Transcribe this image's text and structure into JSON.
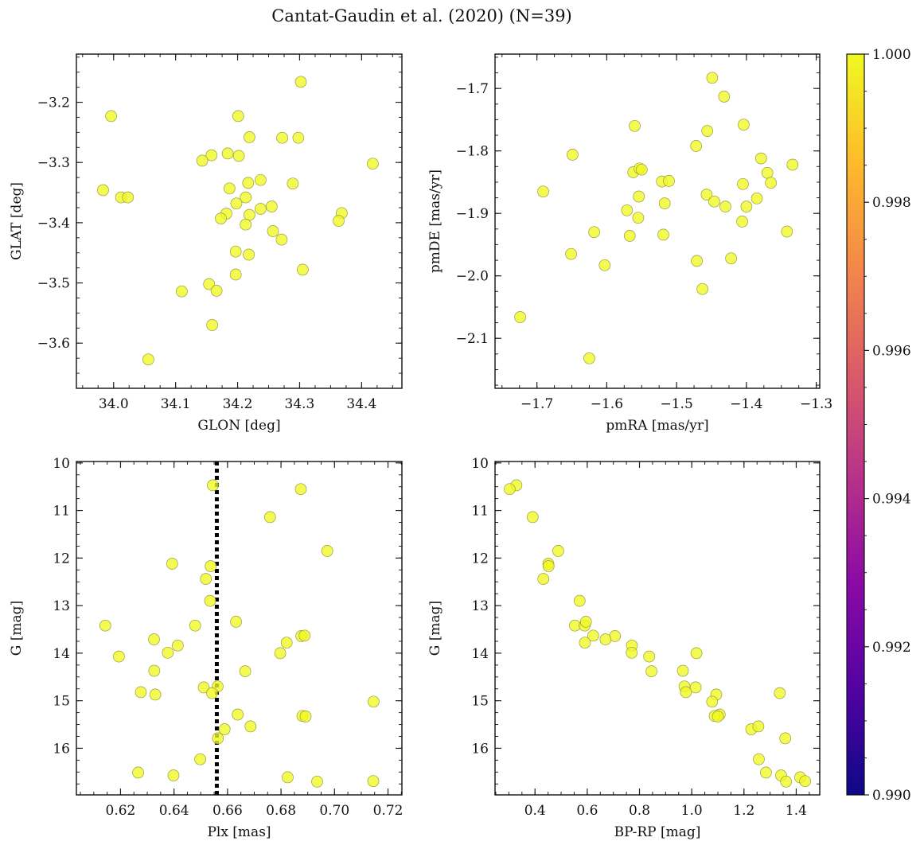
{
  "figure": {
    "title": "Cantat-Gaudin et al. (2020) (N=39)"
  },
  "colors": {
    "point_fill": "#f0f921",
    "point_edge": "#9a9a40",
    "ref_line": "#000000",
    "colormap": [
      "#0d0887",
      "#5302a3",
      "#8b0aa5",
      "#b83289",
      "#db5c68",
      "#f48849",
      "#febc2a",
      "#f0f921"
    ]
  },
  "colorbar": {
    "ticks": [
      "0.990",
      "0.992",
      "0.994",
      "0.996",
      "0.998",
      "1.000"
    ],
    "range": [
      0.99,
      1.0
    ],
    "colormap_name": "plasma"
  },
  "chart_data": [
    {
      "id": "pos",
      "type": "scatter",
      "xlabel": "GLON [deg]",
      "ylabel": "GLAT [deg]",
      "xlim": [
        33.94,
        34.465
      ],
      "ylim": [
        -3.675,
        -3.12
      ],
      "xticks": [
        34.0,
        34.1,
        34.2,
        34.3,
        34.4
      ],
      "xtick_labels": [
        "34.0",
        "34.1",
        "34.2",
        "34.3",
        "34.4"
      ],
      "yticks": [
        -3.2,
        -3.3,
        -3.4,
        -3.5,
        -3.6
      ],
      "ytick_labels": [
        "−3.2",
        "−3.3",
        "−3.4",
        "−3.5",
        "−3.6"
      ],
      "x": [
        34.302,
        33.996,
        34.201,
        34.219,
        34.272,
        34.298,
        34.418,
        34.158,
        34.184,
        34.202,
        34.143,
        34.237,
        34.217,
        34.289,
        33.983,
        34.187,
        34.213,
        34.012,
        34.023,
        34.198,
        34.255,
        34.368,
        34.219,
        34.182,
        34.173,
        34.213,
        34.363,
        34.257,
        34.271,
        34.305,
        34.218,
        34.197,
        34.197,
        34.154,
        34.11,
        34.166,
        34.159,
        34.056,
        34.237
      ],
      "y": [
        -3.166,
        -3.223,
        -3.223,
        -3.258,
        -3.259,
        -3.259,
        -3.302,
        -3.288,
        -3.285,
        -3.289,
        -3.297,
        -3.329,
        -3.334,
        -3.335,
        -3.346,
        -3.343,
        -3.358,
        -3.358,
        -3.358,
        -3.368,
        -3.373,
        -3.384,
        -3.387,
        -3.385,
        -3.393,
        -3.403,
        -3.397,
        -3.414,
        -3.428,
        -3.478,
        -3.453,
        -3.448,
        -3.486,
        -3.502,
        -3.514,
        -3.513,
        -3.57,
        -3.627,
        -3.377
      ]
    },
    {
      "id": "pm",
      "type": "scatter",
      "xlabel": "pmRA [mas/yr]",
      "ylabel": "pmDE [mas/yr]",
      "xlim": [
        -1.76,
        -1.295
      ],
      "ylim": [
        -2.18,
        -1.645
      ],
      "xticks": [
        -1.7,
        -1.6,
        -1.5,
        -1.4,
        -1.3
      ],
      "xtick_labels": [
        "−1.7",
        "−1.6",
        "−1.5",
        "−1.4",
        "−1.3"
      ],
      "yticks": [
        -1.7,
        -1.8,
        -1.9,
        -2.0,
        -2.1
      ],
      "ytick_labels": [
        "−1.7",
        "−1.8",
        "−1.9",
        "−2.0",
        "−2.1"
      ],
      "x": [
        -1.449,
        -1.432,
        -1.56,
        -1.404,
        -1.456,
        -1.649,
        -1.472,
        -1.379,
        -1.334,
        -1.562,
        -1.553,
        -1.37,
        -1.521,
        -1.511,
        -1.365,
        -1.405,
        -1.691,
        -1.457,
        -1.554,
        -1.385,
        -1.446,
        -1.517,
        -1.43,
        -1.4,
        -1.571,
        -1.406,
        -1.555,
        -1.618,
        -1.342,
        -1.567,
        -1.519,
        -1.651,
        -1.422,
        -1.471,
        -1.603,
        -1.463,
        -1.724,
        -1.625,
        -1.55
      ],
      "y": [
        -1.683,
        -1.713,
        -1.76,
        -1.758,
        -1.768,
        -1.806,
        -1.792,
        -1.812,
        -1.822,
        -1.834,
        -1.828,
        -1.835,
        -1.849,
        -1.848,
        -1.851,
        -1.853,
        -1.865,
        -1.87,
        -1.873,
        -1.876,
        -1.881,
        -1.884,
        -1.889,
        -1.889,
        -1.895,
        -1.913,
        -1.907,
        -1.93,
        -1.929,
        -1.936,
        -1.934,
        -1.965,
        -1.972,
        -1.976,
        -1.983,
        -2.021,
        -2.066,
        -2.132,
        -1.83
      ]
    },
    {
      "id": "plx",
      "type": "scatter",
      "xlabel": "Plx [mas]",
      "ylabel": "G [mag]",
      "xlim": [
        0.6035,
        0.7252
      ],
      "ylim": [
        16.98,
        9.97
      ],
      "xticks": [
        0.62,
        0.64,
        0.66,
        0.68,
        0.7,
        0.72
      ],
      "xtick_labels": [
        "0.62",
        "0.64",
        "0.66",
        "0.68",
        "0.70",
        "0.72"
      ],
      "yticks": [
        10,
        11,
        12,
        13,
        14,
        15,
        16
      ],
      "ytick_labels": [
        "10",
        "11",
        "12",
        "13",
        "14",
        "15",
        "16"
      ],
      "ref_line_x": 0.656,
      "x": [
        0.6545,
        0.6874,
        0.6759,
        0.6973,
        0.6393,
        0.6537,
        0.6519,
        0.6535,
        0.6143,
        0.6479,
        0.6632,
        0.6876,
        0.6888,
        0.6325,
        0.6414,
        0.6821,
        0.6194,
        0.6377,
        0.6797,
        0.6326,
        0.6666,
        0.6276,
        0.633,
        0.6511,
        0.6563,
        0.6542,
        0.7146,
        0.6638,
        0.688,
        0.6892,
        0.6686,
        0.6589,
        0.6564,
        0.6498,
        0.6266,
        0.6398,
        0.6825,
        0.6935,
        0.7145
      ],
      "y": [
        10.47,
        10.55,
        11.14,
        11.85,
        12.12,
        12.17,
        12.44,
        12.9,
        13.42,
        13.42,
        13.34,
        13.64,
        13.63,
        13.71,
        13.84,
        13.78,
        14.07,
        13.99,
        14.0,
        14.37,
        14.38,
        14.82,
        14.87,
        14.72,
        14.7,
        14.84,
        15.02,
        15.29,
        15.32,
        15.33,
        15.54,
        15.6,
        15.79,
        16.23,
        16.51,
        16.57,
        16.61,
        16.7,
        16.69
      ]
    },
    {
      "id": "cmd",
      "type": "scatter",
      "xlabel": "BP-RP [mag]",
      "ylabel": "G [mag]",
      "xlim": [
        0.247,
        1.49
      ],
      "ylim": [
        16.98,
        9.97
      ],
      "xticks": [
        0.4,
        0.6,
        0.8,
        1.0,
        1.2,
        1.4
      ],
      "xtick_labels": [
        "0.4",
        "0.6",
        "0.8",
        "1.0",
        "1.2",
        "1.4"
      ],
      "yticks": [
        10,
        11,
        12,
        13,
        14,
        15,
        16
      ],
      "ytick_labels": [
        "10",
        "11",
        "12",
        "13",
        "14",
        "15",
        "16"
      ],
      "x": [
        0.329,
        0.303,
        0.391,
        0.489,
        0.451,
        0.452,
        0.432,
        0.571,
        0.553,
        0.59,
        0.595,
        0.706,
        0.67,
        0.623,
        0.771,
        0.591,
        0.837,
        0.77,
        1.018,
        0.966,
        0.846,
        0.972,
        1.094,
        1.337,
        1.015,
        0.978,
        1.078,
        1.107,
        1.088,
        1.1,
        1.228,
        1.255,
        1.358,
        1.257,
        1.284,
        1.342,
        1.415,
        1.361,
        1.434
      ],
      "y": [
        10.47,
        10.55,
        11.14,
        11.85,
        12.12,
        12.17,
        12.44,
        12.9,
        13.42,
        13.42,
        13.34,
        13.64,
        13.71,
        13.63,
        13.84,
        13.78,
        14.07,
        13.99,
        14.0,
        14.37,
        14.38,
        14.7,
        14.87,
        14.84,
        14.72,
        14.82,
        15.02,
        15.29,
        15.32,
        15.33,
        15.6,
        15.54,
        15.79,
        16.23,
        16.51,
        16.57,
        16.61,
        16.7,
        16.69
      ]
    }
  ]
}
